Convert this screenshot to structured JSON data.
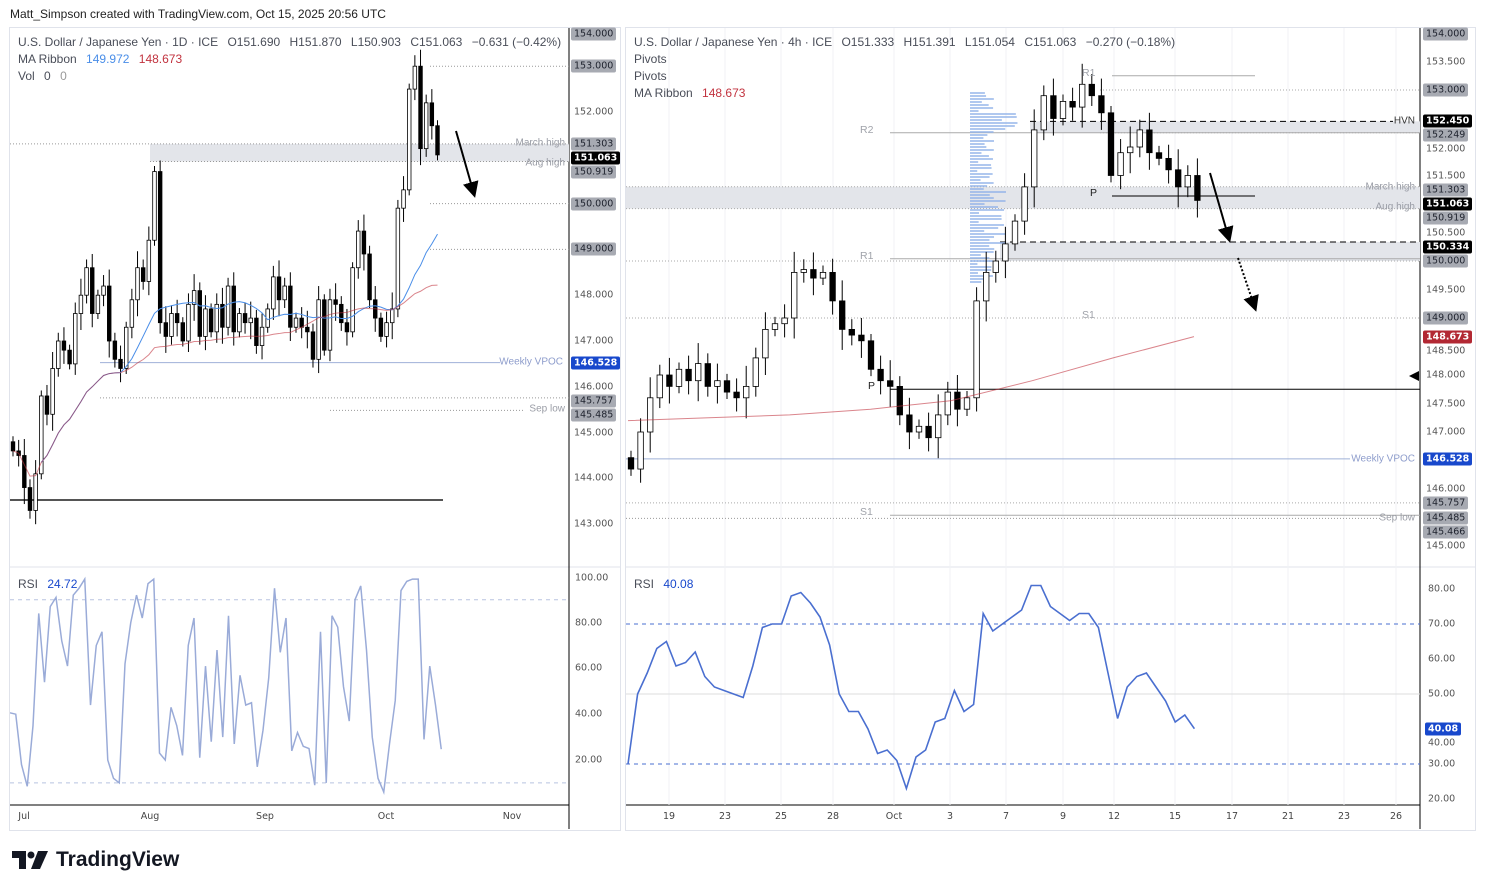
{
  "header": {
    "credit": "Matt_Simpson created with TradingView.com, Oct 15, 2025 20:56 UTC"
  },
  "footer": {
    "logo_text": "TradingView",
    "logo_icon": "tradingview-logo"
  },
  "colors": {
    "up": "#ffffff",
    "down": "#000000",
    "ma_fast": "#4a8ee8",
    "ma_slow": "#c2333f",
    "rsi_daily": "#9aabd8",
    "rsi_4h": "#4a6fd0",
    "vpoc": "#9fb0d8",
    "zone": "#e3e5ea"
  },
  "chart_data": [
    {
      "type": "candlestick",
      "title": "U.S. Dollar / Japanese Yen · 1D · ICE",
      "ohlc": {
        "o": "O151.690",
        "h": "H151.870",
        "l": "L150.903",
        "c": "C151.063",
        "change": "−0.631 (−0.42%)"
      },
      "legend": {
        "ma_label": "MA Ribbon",
        "ma_fast": "149.972",
        "ma_slow": "148.673",
        "vol_label": "Vol",
        "vol_value": "0",
        "vol_value2": "0"
      },
      "x_ticks": [
        "Jul",
        "Aug",
        "Sep",
        "Oct",
        "Nov"
      ],
      "closes": [
        144.6,
        144.5,
        143.8,
        143.3,
        144.1,
        145.8,
        145.4,
        146.4,
        147.0,
        146.8,
        146.5,
        147.6,
        148.0,
        148.6,
        147.6,
        148.0,
        148.2,
        147.0,
        146.6,
        146.4,
        147.3,
        147.9,
        148.6,
        148.3,
        149.2,
        150.7,
        147.4,
        147.1,
        147.6,
        147.4,
        147.0,
        147.8,
        148.1,
        147.1,
        147.7,
        147.2,
        147.8,
        147.3,
        148.2,
        147.2,
        147.6,
        147.4,
        147.5,
        146.9,
        147.3,
        147.7,
        148.4,
        147.9,
        148.2,
        147.3,
        147.5,
        147.3,
        147.2,
        146.6,
        147.9,
        146.8,
        147.9,
        147.8,
        147.4,
        147.2,
        148.6,
        149.4,
        148.9,
        147.9,
        147.5,
        147.1,
        147.4,
        147.7,
        149.9,
        150.3,
        152.5,
        153.0,
        151.2,
        152.2,
        151.7,
        151.063
      ],
      "price_labels": [
        {
          "text": "154.000",
          "style": "gray"
        },
        {
          "text": "153.000",
          "style": "gray"
        },
        {
          "text": "152.000",
          "style": "plain"
        },
        {
          "text": "151.303",
          "style": "gray"
        },
        {
          "text": "151.063",
          "style": "black"
        },
        {
          "text": "150.919",
          "style": "gray"
        },
        {
          "text": "150.000",
          "style": "gray"
        },
        {
          "text": "149.000",
          "style": "gray"
        },
        {
          "text": "148.000",
          "style": "plain"
        },
        {
          "text": "147.000",
          "style": "plain"
        },
        {
          "text": "146.528",
          "style": "blue"
        },
        {
          "text": "146.000",
          "style": "plain"
        },
        {
          "text": "145.757",
          "style": "gray"
        },
        {
          "text": "145.485",
          "style": "gray"
        },
        {
          "text": "145.000",
          "style": "plain"
        },
        {
          "text": "144.000",
          "style": "plain"
        },
        {
          "text": "143.000",
          "style": "plain"
        }
      ],
      "levels": [
        {
          "price": 151.303,
          "label": "March high",
          "kind": "dotted"
        },
        {
          "price": 150.919,
          "label": "Aug high",
          "kind": "dotted"
        },
        {
          "price": 146.528,
          "label": "Weekly VPOC",
          "kind": "vpoc"
        },
        {
          "price": 145.485,
          "label": "Sep low",
          "kind": "dotted"
        }
      ],
      "rsi": {
        "label": "RSI",
        "value": "24.72",
        "overbought": 90,
        "oversold": 10,
        "y_ticks": [
          "100.00",
          "80.00",
          "60.00",
          "40.00",
          "20.00"
        ],
        "values": [
          40.6,
          40,
          18,
          8.5,
          35,
          84,
          54,
          87,
          91,
          72,
          61,
          92,
          95,
          99,
          44,
          70,
          76,
          20,
          12,
          10,
          62,
          80,
          92,
          82,
          97,
          99,
          23,
          20,
          43,
          35,
          22,
          70,
          82,
          21,
          61,
          28,
          68,
          30,
          83,
          27,
          57,
          44,
          45,
          17,
          33,
          56,
          95,
          67,
          82,
          24,
          32,
          26,
          25,
          9,
          76,
          10,
          83,
          78,
          52,
          37,
          90,
          96,
          68,
          30,
          12,
          6,
          27,
          46,
          94,
          98,
          99,
          99,
          29,
          61,
          44,
          24.72
        ]
      }
    },
    {
      "type": "candlestick",
      "title": "U.S. Dollar / Japanese Yen · 4h · ICE",
      "ohlc": {
        "o": "O151.333",
        "h": "H151.391",
        "l": "L151.054",
        "c": "C151.063",
        "change": "−0.270 (−0.18%)"
      },
      "legend": {
        "pivots_1": "Pivots",
        "pivots_2": "Pivots",
        "ma_label": "MA Ribbon",
        "ma_slow": "148.673"
      },
      "x_ticks": [
        "19",
        "23",
        "25",
        "28",
        "Oct",
        "3",
        "7",
        "9",
        "12",
        "15",
        "17",
        "21",
        "23",
        "26"
      ],
      "closes": [
        146.35,
        147.0,
        147.6,
        148.0,
        147.8,
        148.1,
        147.9,
        148.2,
        147.8,
        147.9,
        147.7,
        147.6,
        147.8,
        148.3,
        148.8,
        148.9,
        149.0,
        149.8,
        149.85,
        149.7,
        149.8,
        149.3,
        148.8,
        148.7,
        148.6,
        148.1,
        147.9,
        147.8,
        147.3,
        147.0,
        147.1,
        146.9,
        147.3,
        147.7,
        147.4,
        147.6,
        149.3,
        149.8,
        150.0,
        150.3,
        150.7,
        151.3,
        152.3,
        152.9,
        152.5,
        152.8,
        152.7,
        153.1,
        152.9,
        152.6,
        151.5,
        151.9,
        152.0,
        152.3,
        151.9,
        151.8,
        151.6,
        151.3,
        151.5,
        151.063
      ],
      "ma_slow_values": [
        147.2,
        147.25,
        147.3,
        147.4,
        147.55,
        147.9,
        148.3,
        148.673
      ],
      "price_labels": [
        {
          "text": "154.000",
          "style": "gray"
        },
        {
          "text": "153.500",
          "style": "plain"
        },
        {
          "text": "153.000",
          "style": "gray"
        },
        {
          "text": "152.450",
          "style": "black"
        },
        {
          "text": "152.249",
          "style": "gray"
        },
        {
          "text": "152.000",
          "style": "plain"
        },
        {
          "text": "151.500",
          "style": "plain"
        },
        {
          "text": "151.303",
          "style": "gray"
        },
        {
          "text": "151.063",
          "style": "black"
        },
        {
          "text": "150.919",
          "style": "gray"
        },
        {
          "text": "150.500",
          "style": "plain"
        },
        {
          "text": "150.334",
          "style": "black"
        },
        {
          "text": "150.000",
          "style": "gray"
        },
        {
          "text": "149.500",
          "style": "plain"
        },
        {
          "text": "149.000",
          "style": "gray"
        },
        {
          "text": "148.673",
          "style": "red"
        },
        {
          "text": "148.500",
          "style": "plain"
        },
        {
          "text": "148.000",
          "style": "plain"
        },
        {
          "text": "147.500",
          "style": "plain"
        },
        {
          "text": "147.000",
          "style": "plain"
        },
        {
          "text": "146.528",
          "style": "blue"
        },
        {
          "text": "146.000",
          "style": "plain"
        },
        {
          "text": "145.757",
          "style": "gray"
        },
        {
          "text": "145.485",
          "style": "gray"
        },
        {
          "text": "145.466",
          "style": "gray"
        },
        {
          "text": "145.000",
          "style": "plain"
        }
      ],
      "levels": [
        {
          "price": 152.45,
          "label": "HVN",
          "kind": "hvn"
        },
        {
          "price": 151.303,
          "label": "March high",
          "kind": "dotted"
        },
        {
          "price": 150.919,
          "label": "Aug high",
          "kind": "dotted"
        },
        {
          "price": 146.528,
          "label": "Weekly VPOC",
          "kind": "vpoc"
        },
        {
          "price": 145.485,
          "label": "Sep low",
          "kind": "dotted"
        }
      ],
      "pivots": [
        {
          "label": "R2",
          "price": 152.25,
          "period": "previous"
        },
        {
          "label": "R1",
          "price": 150.04,
          "period": "previous"
        },
        {
          "label": "P",
          "price": 147.75,
          "period": "previous"
        },
        {
          "label": "S1",
          "price": 145.54,
          "period": "previous"
        },
        {
          "label": "R1",
          "price": 153.25,
          "period": "current"
        },
        {
          "label": "P",
          "price": 151.14,
          "period": "current"
        },
        {
          "label": "S1",
          "price": 149.0,
          "period": "current"
        }
      ],
      "rsi": {
        "label": "RSI",
        "value": "40.08",
        "overbought": 70,
        "oversold": 30,
        "mid": 50,
        "y_ticks": [
          "80.00",
          "70.00",
          "60.00",
          "50.00",
          "40.00",
          "30.00",
          "20.00"
        ],
        "values": [
          30,
          50,
          56,
          63,
          65,
          58,
          59,
          62,
          55,
          52,
          51,
          50,
          49,
          58,
          69,
          70,
          70,
          78,
          79,
          76,
          72,
          64,
          50,
          45,
          45,
          40,
          33,
          34,
          31,
          23,
          32,
          34,
          42,
          43,
          51,
          45,
          47,
          73,
          68,
          70,
          72,
          74,
          81,
          81,
          75,
          73,
          71,
          73,
          73,
          69,
          56,
          43,
          52,
          55,
          56,
          52,
          48,
          42,
          44,
          40.08
        ]
      }
    }
  ]
}
